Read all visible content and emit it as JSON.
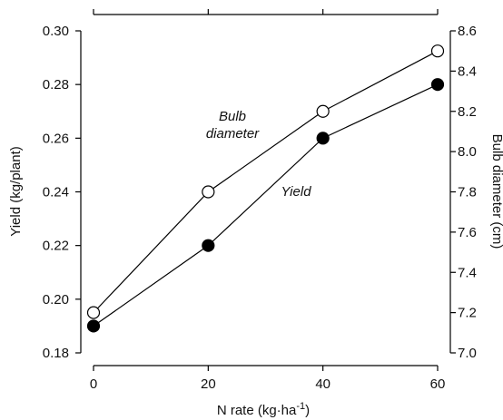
{
  "chart_data": {
    "type": "line",
    "x": [
      0,
      20,
      40,
      60
    ],
    "xlabel": "N rate (kg·ha",
    "xlabel_sup": "-1",
    "xlabel_end": ")",
    "xlim": [
      -2,
      62
    ],
    "xticks": [
      0,
      20,
      40,
      60
    ],
    "xtick_labels": [
      "0",
      "20",
      "40",
      "60"
    ],
    "ylabel_left": "Yield (kg/plant)",
    "ylim_left": [
      0.18,
      0.3
    ],
    "yticks_left": [
      0.18,
      0.2,
      0.22,
      0.24,
      0.26,
      0.28,
      0.3
    ],
    "ytick_labels_left": [
      "0.18",
      "0.20",
      "0.22",
      "0.24",
      "0.26",
      "0.28",
      "0.30"
    ],
    "ylabel_right": "Bulb diameter (cm)",
    "ylim_right": [
      7.0,
      8.6
    ],
    "yticks_right": [
      7.0,
      7.2,
      7.4,
      7.6,
      7.8,
      8.0,
      8.2,
      8.4,
      8.6
    ],
    "ytick_labels_right": [
      "7.0",
      "7.2",
      "7.4",
      "7.6",
      "7.8",
      "8.0",
      "8.2",
      "8.4",
      "8.6"
    ],
    "grid": false,
    "series": [
      {
        "name": "Yield",
        "axis": "left",
        "marker": "filled-circle",
        "color": "#000000",
        "values": [
          0.19,
          0.22,
          0.26,
          0.28
        ]
      },
      {
        "name": "Bulb diameter",
        "axis": "right",
        "marker": "open-circle",
        "color": "#000000",
        "values": [
          7.2,
          7.8,
          8.2,
          8.5
        ]
      }
    ],
    "annotations": {
      "bulb_line1": "Bulb",
      "bulb_line2": "diameter",
      "yield": "Yield"
    }
  }
}
